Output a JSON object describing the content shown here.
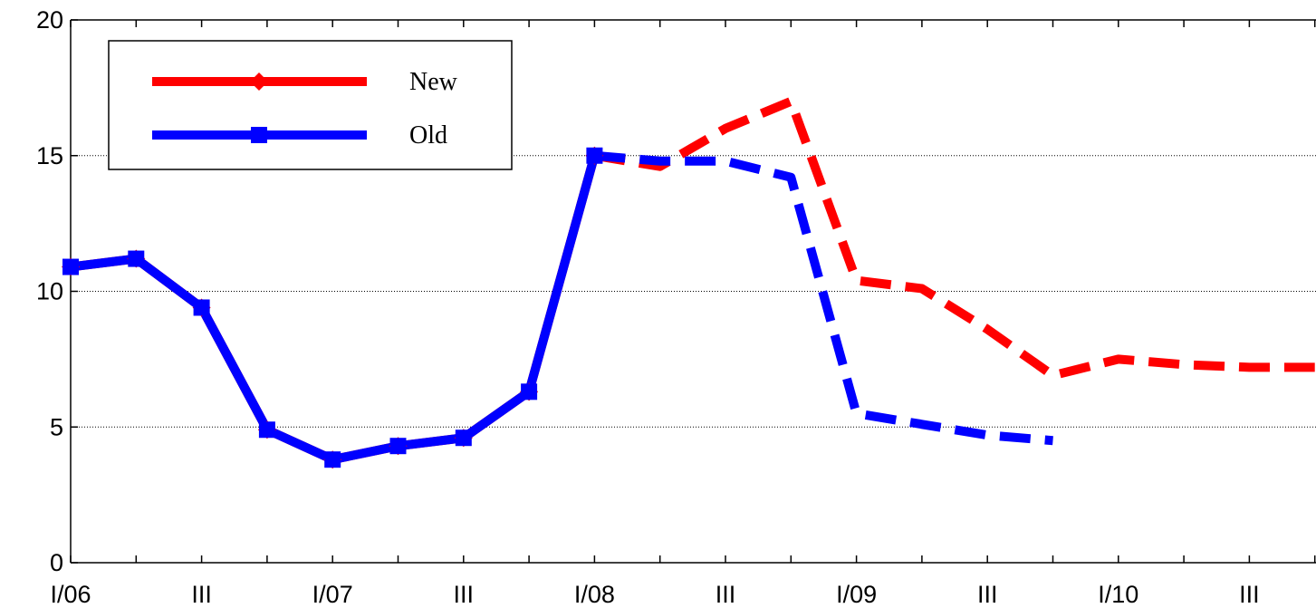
{
  "chart_data": {
    "type": "line",
    "categories": [
      "I/06",
      null,
      "III",
      null,
      "I/07",
      null,
      "III",
      null,
      "I/08",
      null,
      "III",
      null,
      "I/09",
      null,
      "III",
      null,
      "I/10",
      null,
      "III",
      null
    ],
    "series": [
      {
        "name": "New",
        "color": "#ff0000",
        "marker": "diamond",
        "dash_from": 8,
        "values": [
          10.9,
          11.2,
          9.4,
          4.9,
          3.8,
          4.3,
          4.6,
          6.3,
          15.0,
          14.6,
          16.0,
          17.0,
          10.4,
          10.1,
          8.6,
          6.9,
          7.5,
          7.3,
          7.2,
          7.2
        ]
      },
      {
        "name": "Old",
        "color": "#0000ff",
        "marker": "square",
        "dash_from": 8,
        "values": [
          10.9,
          11.2,
          9.4,
          4.9,
          3.8,
          4.3,
          4.6,
          6.3,
          15.0,
          14.8,
          14.8,
          14.2,
          5.5,
          5.1,
          4.7,
          4.5,
          null,
          null,
          null,
          null
        ]
      }
    ],
    "ylim": [
      0,
      20
    ],
    "yticks": [
      0,
      5,
      10,
      15,
      20
    ],
    "grid": true,
    "legend": "upper left"
  }
}
